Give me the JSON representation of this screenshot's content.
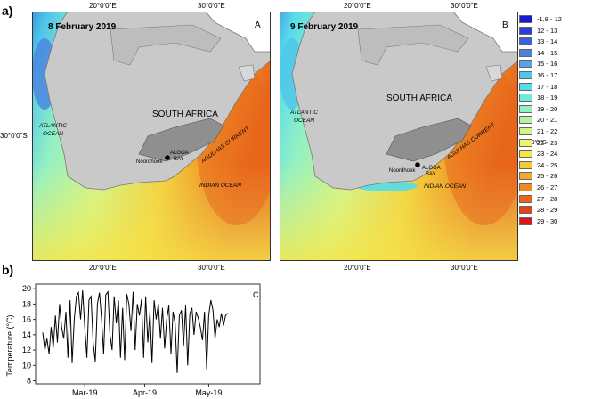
{
  "figure": {
    "label_a": "a)",
    "label_b": "b)"
  },
  "map_a": {
    "date": "8 February 2019",
    "panel": "A",
    "top_ticks": [
      "20°0'0\"E",
      "30°0'0\"E"
    ],
    "bottom_ticks": [
      "20°0'0\"E",
      "30°0'0\"E"
    ],
    "lat_tick": "30°0'0\"S",
    "labels": {
      "country": "SOUTH AFRICA",
      "atlantic": "ATLANTIC\nOCEAN",
      "indian": "INDIAN OCEAN",
      "current": "AGULHAS CURRENT",
      "bay": "ALGOA\nBAY",
      "site": "Noordhoek"
    }
  },
  "map_b": {
    "date": "9 February 2019",
    "panel": "B",
    "top_ticks": [
      "20°0'0\"E",
      "30°0'0\"E"
    ],
    "bottom_ticks": [
      "20°0'0\"E",
      "30°0'0\"E"
    ],
    "lat_tick": "30°0'0\"S",
    "labels": {
      "country": "SOUTH AFRICA",
      "atlantic": "ATLANTIC\nOCEAN",
      "indian": "INDIAN OCEAN",
      "current": "AGULHAS CURRENT",
      "bay": "ALGOA\nBAY",
      "site": "Noordhoek"
    }
  },
  "legend": [
    {
      "label": "-1.8 - 12",
      "color": "#1a1ad0"
    },
    {
      "label": "12 - 13",
      "color": "#2a3fd8"
    },
    {
      "label": "13 - 14",
      "color": "#3a60dc"
    },
    {
      "label": "14 - 15",
      "color": "#4a82e0"
    },
    {
      "label": "15 - 16",
      "color": "#4fa6e6"
    },
    {
      "label": "16 - 17",
      "color": "#4ec6ea"
    },
    {
      "label": "17 - 18",
      "color": "#54dcea"
    },
    {
      "label": "18 - 19",
      "color": "#6eeadc"
    },
    {
      "label": "19 - 20",
      "color": "#93f0c4"
    },
    {
      "label": "20 - 21",
      "color": "#b4f2a6"
    },
    {
      "label": "21 - 22",
      "color": "#d2f48a"
    },
    {
      "label": "22 - 23",
      "color": "#eef46e"
    },
    {
      "label": "23 - 24",
      "color": "#f6e64a"
    },
    {
      "label": "24 - 25",
      "color": "#f4ca36"
    },
    {
      "label": "25 - 26",
      "color": "#f2aa2a"
    },
    {
      "label": "26 - 27",
      "color": "#ee8a22"
    },
    {
      "label": "27 - 28",
      "color": "#e8661c"
    },
    {
      "label": "28 - 29",
      "color": "#e04418"
    },
    {
      "label": "29 - 30",
      "color": "#d81818"
    }
  ],
  "chart_data": {
    "type": "line",
    "panel": "C",
    "title": "",
    "xlabel": "",
    "ylabel": "Temperature (°C)",
    "x_ticks": [
      "Mar-19",
      "Apr-19",
      "May-19"
    ],
    "y_ticks": [
      8,
      10,
      12,
      14,
      16,
      18,
      20
    ],
    "ylim": [
      7.6,
      20.6
    ],
    "xlim_days": [
      0,
      100
    ],
    "x_tick_days": [
      20,
      48.5,
      79
    ],
    "series": [
      {
        "name": "Noordhoek temperature",
        "x": [
          0,
          1,
          2,
          3,
          4,
          5,
          6,
          7,
          8,
          9,
          10,
          11,
          12,
          13,
          14,
          15,
          16,
          17,
          18,
          19,
          20,
          21,
          22,
          23,
          24,
          25,
          26,
          27,
          28,
          29,
          30,
          31,
          32,
          33,
          34,
          35,
          36,
          37,
          38,
          39,
          40,
          41,
          42,
          43,
          44,
          45,
          46,
          47,
          48,
          49,
          50,
          51,
          52,
          53,
          54,
          55,
          56,
          57,
          58,
          59,
          60,
          61,
          62,
          63,
          64,
          65,
          66,
          67,
          68,
          69,
          70,
          71,
          72,
          73,
          74,
          75,
          76,
          77,
          78,
          79,
          80,
          81,
          82,
          83,
          84,
          85,
          86,
          87,
          88
        ],
        "values": [
          14.3,
          12.0,
          13.5,
          11.5,
          15.0,
          12.3,
          16.5,
          13.0,
          18.0,
          15.0,
          13.5,
          17.0,
          11.0,
          18.5,
          10.3,
          16.0,
          19.0,
          19.5,
          16.0,
          19.8,
          15.0,
          11.0,
          18.5,
          19.0,
          13.0,
          10.5,
          18.0,
          19.5,
          16.0,
          11.5,
          19.2,
          19.6,
          14.0,
          12.0,
          19.0,
          15.5,
          18.5,
          11.0,
          17.5,
          10.7,
          19.3,
          18.0,
          14.5,
          19.6,
          12.0,
          18.0,
          16.5,
          18.6,
          11.0,
          19.0,
          13.0,
          17.0,
          10.3,
          18.5,
          16.0,
          18.0,
          13.5,
          17.5,
          12.2,
          16.0,
          17.8,
          11.5,
          17.0,
          15.5,
          9.0,
          16.5,
          17.2,
          12.5,
          17.8,
          10.0,
          16.8,
          17.5,
          14.0,
          17.0,
          16.2,
          15.0,
          13.3,
          17.0,
          9.5,
          16.5,
          18.5,
          17.2,
          13.5,
          16.0,
          15.0,
          16.8,
          15.2,
          16.5,
          16.8
        ]
      }
    ]
  }
}
